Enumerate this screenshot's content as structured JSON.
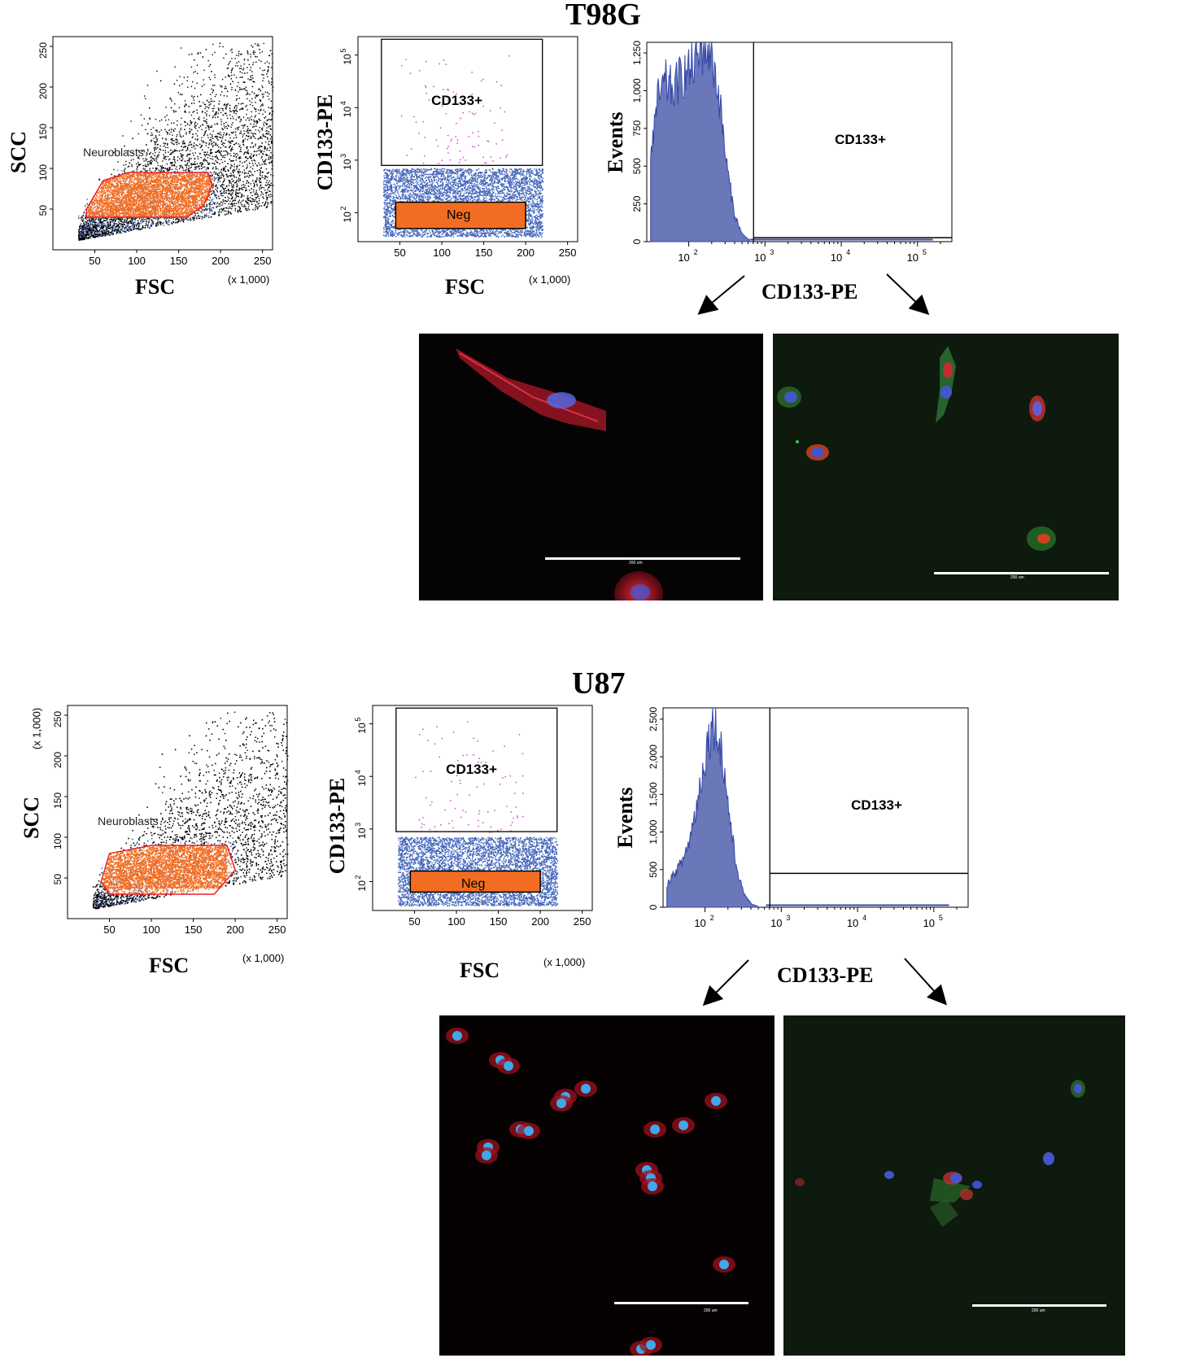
{
  "colors": {
    "dots_black": "#000000",
    "dots_blue": "#4466bb",
    "dots_orange": "#f26d21",
    "dots_magenta": "#cc44cc",
    "histogram_fill": "#6a77b8",
    "histogram_line": "#3548a8",
    "red_outline": "#e8202a"
  },
  "panels": [
    {
      "title": "T98G",
      "scatter1": {
        "type": "scatter",
        "xlabel": "FSC",
        "ylabel": "SCC",
        "xticks": [
          "50",
          "100",
          "150",
          "200",
          "250"
        ],
        "yticks": [
          "50",
          "100",
          "150",
          "200",
          "250"
        ],
        "multiplier": "(x 1,000)",
        "y_multiplier": "",
        "gate_name": "Neuroblasts",
        "xlim": [
          0,
          262
        ],
        "ylim": [
          0,
          262
        ]
      },
      "scatter2": {
        "type": "scatter",
        "xlabel": "FSC",
        "ylabel": "CD133-PE",
        "xticks": [
          "50",
          "100",
          "150",
          "200",
          "250"
        ],
        "multiplier": "(x 1,000)",
        "gate_pos": "CD133+",
        "gate_neg": "Neg"
      },
      "histogram": {
        "type": "area",
        "xlabel": "CD133-PE",
        "ylabel": "Events",
        "yticks": [
          "0",
          "250",
          "500",
          "750",
          "1,000",
          "1,250"
        ],
        "ylim": [
          0,
          1320
        ],
        "gate": "CD133+",
        "x_log_decades": [
          2,
          3,
          4,
          5
        ]
      },
      "images": [
        {
          "scale_bar": "200 um"
        },
        {
          "scale_bar": "200 um"
        }
      ]
    },
    {
      "title": "U87",
      "scatter1": {
        "type": "scatter",
        "xlabel": "FSC",
        "ylabel": "SCC",
        "xticks": [
          "50",
          "100",
          "150",
          "200",
          "250"
        ],
        "yticks": [
          "50",
          "100",
          "150",
          "200",
          "250"
        ],
        "multiplier": "(x 1,000)",
        "y_multiplier": "(x 1,000)",
        "gate_name": "Neuroblasts",
        "xlim": [
          0,
          262
        ],
        "ylim": [
          0,
          262
        ]
      },
      "scatter2": {
        "type": "scatter",
        "xlabel": "FSC",
        "ylabel": "CD133-PE",
        "xticks": [
          "50",
          "100",
          "150",
          "200",
          "250"
        ],
        "multiplier": "(x 1,000)",
        "gate_pos": "CD133+",
        "gate_neg": "Neg"
      },
      "histogram": {
        "type": "area",
        "xlabel": "CD133-PE",
        "ylabel": "Events",
        "yticks": [
          "0",
          "500",
          "1,000",
          "1,500",
          "2,000",
          "2,500"
        ],
        "ylim": [
          0,
          2650
        ],
        "gate": "CD133+",
        "x_log_decades": [
          2,
          3,
          4,
          5
        ]
      },
      "images": [
        {
          "scale_bar": "200 um"
        },
        {
          "scale_bar": "200 um"
        }
      ]
    }
  ],
  "chart_data": [
    {
      "type": "scatter",
      "panel": "T98G",
      "title": "",
      "xlabel": "FSC",
      "ylabel": "SCC",
      "x_ticks": [
        50,
        100,
        150,
        200,
        250
      ],
      "y_ticks": [
        50,
        100,
        150,
        200,
        250
      ],
      "xlim": [
        0,
        262
      ],
      "ylim": [
        0,
        262
      ],
      "gates": [
        {
          "name": "Neuroblasts",
          "polygon": [
            [
              40,
              50
            ],
            [
              60,
              85
            ],
            [
              90,
              95
            ],
            [
              185,
              95
            ],
            [
              190,
              80
            ],
            [
              180,
              55
            ],
            [
              160,
              40
            ],
            [
              40,
              40
            ]
          ]
        }
      ]
    },
    {
      "type": "scatter",
      "panel": "T98G",
      "xlabel": "FSC",
      "ylabel": "CD133-PE",
      "x_ticks": [
        50,
        100,
        150,
        200,
        250
      ],
      "y_log_decades": [
        2,
        3,
        4,
        5
      ],
      "gates": [
        {
          "name": "CD133+",
          "fsc_range": [
            28,
            220
          ],
          "pe_range_log": [
            2.9,
            5.3
          ]
        },
        {
          "name": "Neg",
          "fsc_range": [
            45,
            200
          ],
          "pe_range_log": [
            1.7,
            2.2
          ]
        }
      ]
    },
    {
      "type": "area",
      "panel": "T98G",
      "xlabel": "CD133-PE",
      "ylabel": "Events",
      "y_ticks": [
        0,
        250,
        500,
        750,
        1000,
        1250
      ],
      "x_log_decades": [
        2,
        3,
        4,
        5
      ],
      "series": [
        {
          "x_log": [
            1.5,
            1.6,
            1.7,
            1.8,
            1.9,
            2.0,
            2.1,
            2.2,
            2.3,
            2.4,
            2.5,
            2.6,
            2.7,
            2.8
          ],
          "values": [
            580,
            950,
            1050,
            1000,
            1100,
            1120,
            1200,
            1300,
            1250,
            950,
            500,
            180,
            50,
            10
          ]
        }
      ],
      "gate": {
        "name": "CD133+",
        "x_log_range": [
          2.85,
          5.4
        ]
      }
    },
    {
      "type": "scatter",
      "panel": "U87",
      "xlabel": "FSC",
      "ylabel": "SCC",
      "x_ticks": [
        50,
        100,
        150,
        200,
        250
      ],
      "y_ticks": [
        50,
        100,
        150,
        200,
        250
      ],
      "xlim": [
        0,
        262
      ],
      "ylim": [
        0,
        262
      ],
      "gates": [
        {
          "name": "Neuroblasts",
          "polygon": [
            [
              40,
              45
            ],
            [
              50,
              80
            ],
            [
              100,
              90
            ],
            [
              190,
              90
            ],
            [
              200,
              60
            ],
            [
              175,
              30
            ],
            [
              50,
              30
            ]
          ]
        }
      ]
    },
    {
      "type": "scatter",
      "panel": "U87",
      "xlabel": "FSC",
      "ylabel": "CD133-PE",
      "x_ticks": [
        50,
        100,
        150,
        200,
        250
      ],
      "y_log_decades": [
        2,
        3,
        4,
        5
      ],
      "gates": [
        {
          "name": "CD133+",
          "fsc_range": [
            28,
            220
          ],
          "pe_range_log": [
            2.95,
            5.3
          ]
        },
        {
          "name": "Neg",
          "fsc_range": [
            45,
            200
          ],
          "pe_range_log": [
            1.8,
            2.2
          ]
        }
      ]
    },
    {
      "type": "area",
      "panel": "U87",
      "xlabel": "CD133-PE",
      "ylabel": "Events",
      "y_ticks": [
        0,
        500,
        1000,
        1500,
        2000,
        2500
      ],
      "x_log_decades": [
        2,
        3,
        4,
        5
      ],
      "series": [
        {
          "x_log": [
            1.5,
            1.6,
            1.7,
            1.8,
            1.9,
            2.0,
            2.1,
            2.2,
            2.3,
            2.4,
            2.5,
            2.6,
            2.7
          ],
          "values": [
            300,
            450,
            600,
            900,
            1400,
            2000,
            2500,
            2200,
            1400,
            600,
            200,
            50,
            10
          ]
        }
      ],
      "gate": {
        "name": "CD133+",
        "x_log_range": [
          2.85,
          5.4
        ]
      }
    }
  ]
}
